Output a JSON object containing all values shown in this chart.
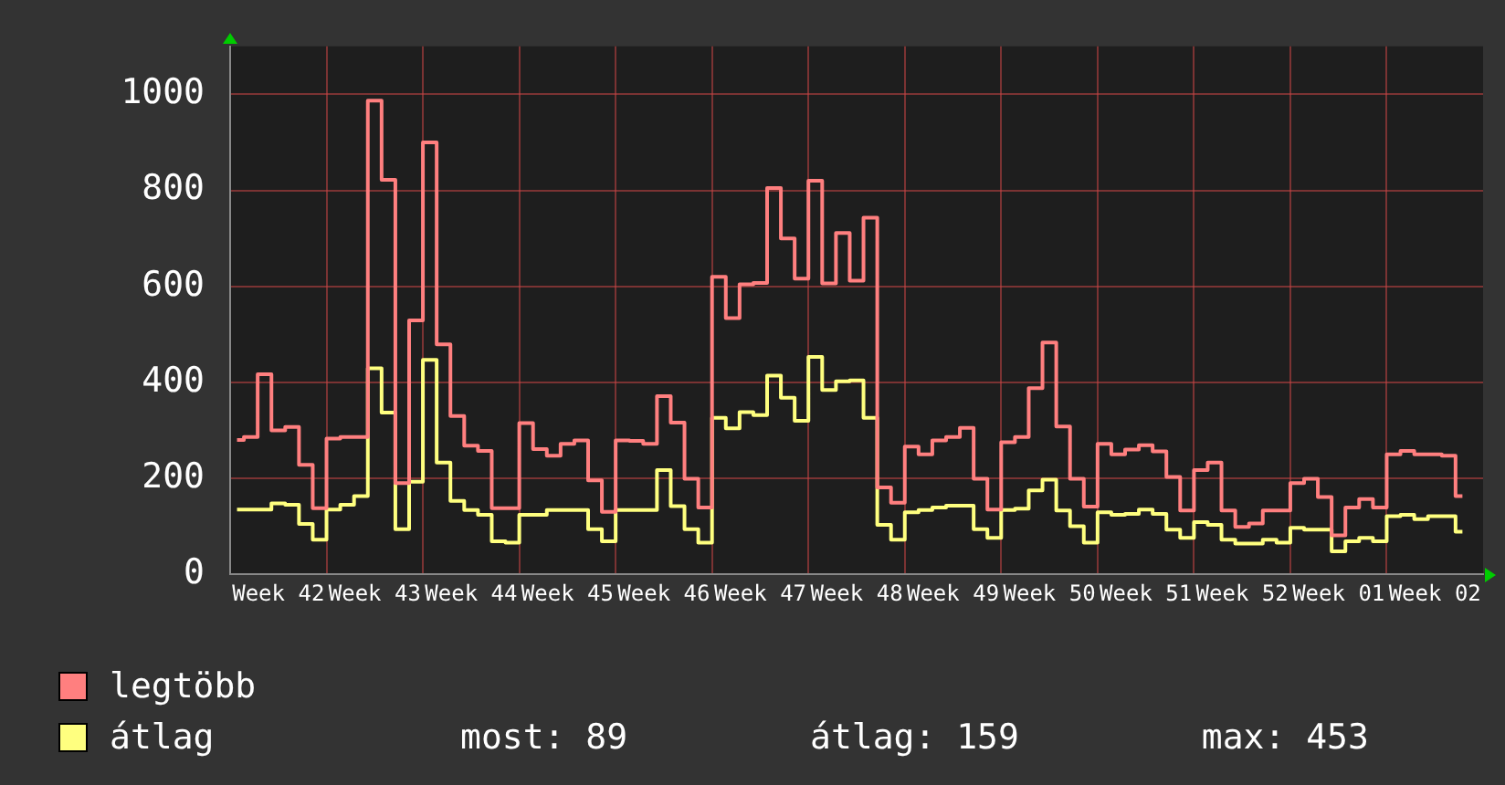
{
  "chart_data": {
    "type": "step",
    "categories": [
      null,
      null,
      null,
      "Week 42",
      null,
      null,
      null,
      null,
      null,
      null,
      "Week 43",
      null,
      null,
      null,
      null,
      null,
      null,
      "Week 44",
      null,
      null,
      null,
      null,
      null,
      null,
      "Week 45",
      null,
      null,
      null,
      null,
      null,
      null,
      "Week 46",
      null,
      null,
      null,
      null,
      null,
      null,
      "Week 47",
      null,
      null,
      null,
      null,
      null,
      null,
      "Week 48",
      null,
      null,
      null,
      null,
      null,
      null,
      "Week 49",
      null,
      null,
      null,
      null,
      null,
      null,
      "Week 50",
      null,
      null,
      null,
      null,
      null,
      null,
      "Week 51",
      null,
      null,
      null,
      null,
      null,
      null,
      "Week 52",
      null,
      null,
      null,
      null,
      null,
      null,
      "Week 01",
      null,
      null,
      null,
      null,
      null,
      null,
      "Week 02",
      null,
      null,
      null
    ],
    "ylim": [
      0,
      1100
    ],
    "yticks": [
      0,
      200,
      400,
      600,
      800,
      1000
    ],
    "grid": true,
    "legend": "bottom",
    "annotations": [
      "most: 89",
      "átlag: 159",
      "max: 453"
    ],
    "series": [
      {
        "name": "legtöbb",
        "color": "#ff7f7f",
        "values": [
          280,
          286,
          417,
          300,
          307,
          228,
          138,
          283,
          286,
          286,
          987,
          822,
          190,
          529,
          900,
          479,
          330,
          268,
          257,
          138,
          138,
          315,
          261,
          247,
          272,
          279,
          196,
          130,
          279,
          278,
          272,
          371,
          316,
          199,
          139,
          620,
          534,
          604,
          607,
          805,
          700,
          616,
          820,
          606,
          711,
          612,
          743,
          181,
          149,
          266,
          250,
          279,
          286,
          305,
          199,
          135,
          275,
          286,
          388,
          483,
          308,
          199,
          141,
          272,
          250,
          260,
          269,
          256,
          203,
          133,
          217,
          233,
          133,
          99,
          106,
          133,
          133,
          190,
          199,
          161,
          81,
          139,
          157,
          139,
          250,
          257,
          250,
          250,
          247,
          163,
          null
        ]
      },
      {
        "name": "átlag",
        "color": "#ffff7f",
        "values": [
          135,
          135,
          135,
          148,
          145,
          105,
          72,
          135,
          145,
          163,
          429,
          337,
          94,
          193,
          447,
          233,
          153,
          134,
          124,
          69,
          66,
          124,
          124,
          134,
          134,
          134,
          94,
          69,
          134,
          134,
          134,
          217,
          142,
          94,
          66,
          326,
          304,
          338,
          332,
          414,
          368,
          320,
          453,
          384,
          402,
          404,
          326,
          103,
          72,
          129,
          134,
          139,
          143,
          143,
          94,
          76,
          134,
          137,
          175,
          197,
          133,
          100,
          66,
          129,
          124,
          126,
          135,
          126,
          93,
          76,
          109,
          103,
          72,
          64,
          64,
          72,
          66,
          97,
          93,
          93,
          48,
          69,
          76,
          69,
          121,
          124,
          115,
          121,
          121,
          89,
          null
        ]
      }
    ]
  }
}
